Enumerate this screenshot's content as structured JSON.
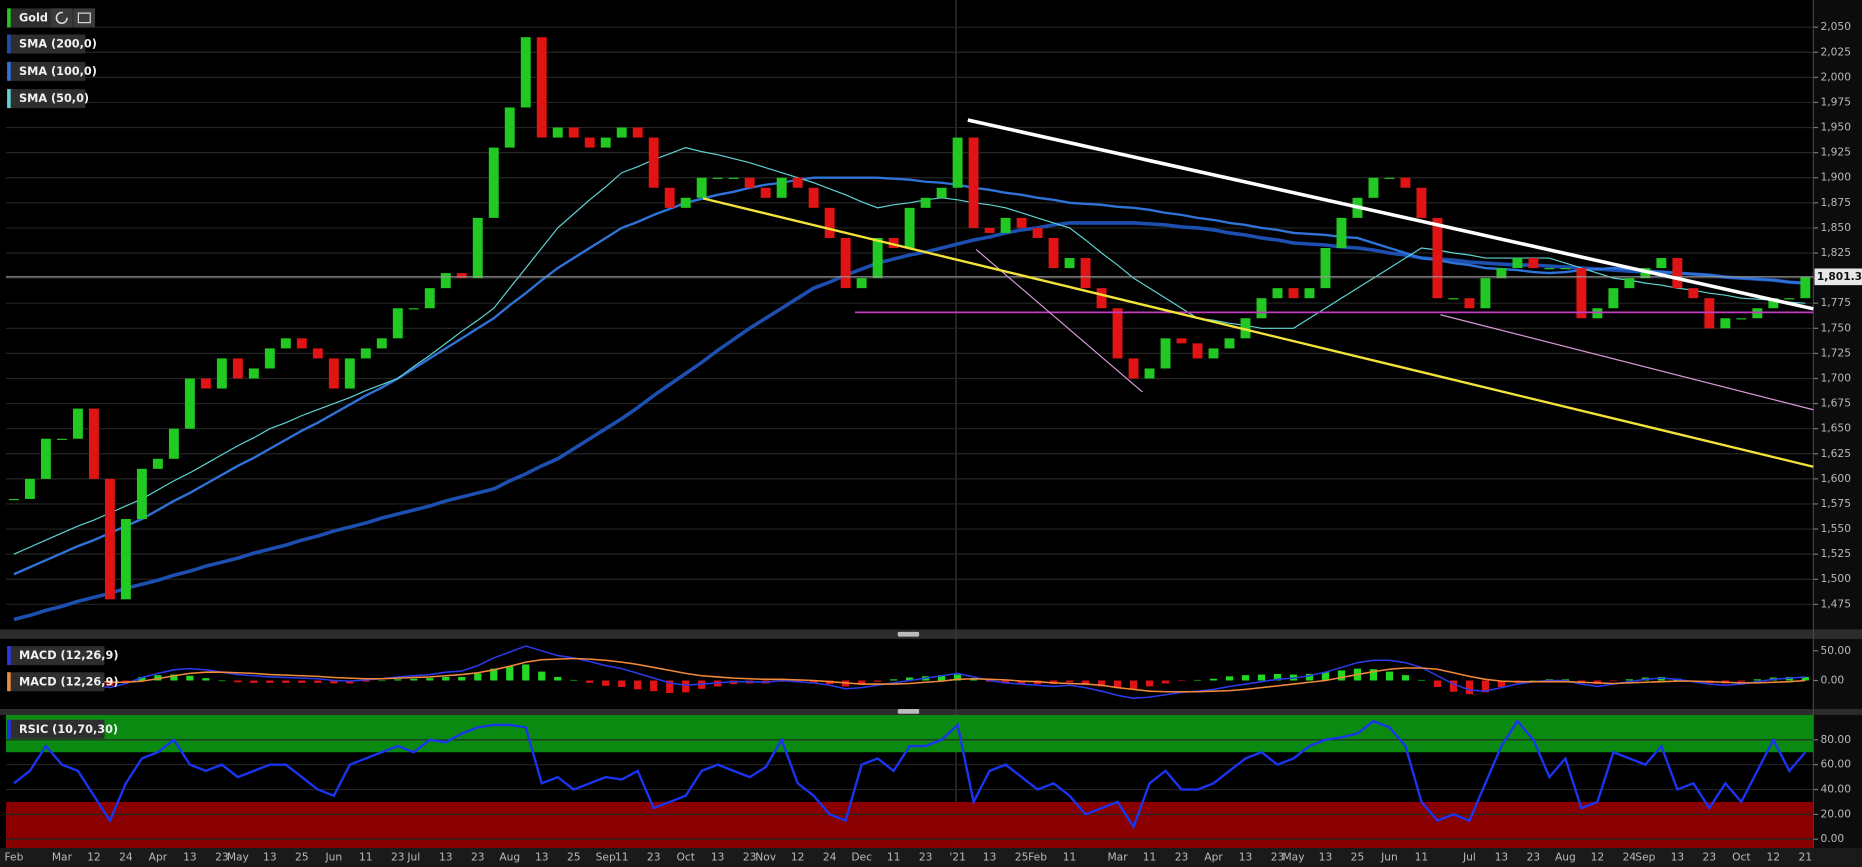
{
  "chart_data": [
    {
      "type": "candlestick",
      "categories": [
        "Feb",
        null,
        null,
        "Mar",
        null,
        "12",
        null,
        "24",
        null,
        "Apr",
        null,
        "13",
        null,
        "23",
        "May",
        null,
        "13",
        null,
        "25",
        null,
        "Jun",
        null,
        "11",
        null,
        "23",
        "Jul",
        null,
        "13",
        null,
        "23",
        null,
        "Aug",
        null,
        "13",
        null,
        "25",
        null,
        "Sep",
        "11",
        null,
        "23",
        null,
        "Oct",
        null,
        "13",
        null,
        "23",
        "Nov",
        null,
        "12",
        null,
        "24",
        null,
        "Dec",
        null,
        "11",
        null,
        "23",
        null,
        "'21",
        null,
        "13",
        null,
        "25",
        "Feb",
        null,
        "11",
        null,
        null,
        "Mar",
        null,
        "11",
        null,
        "23",
        null,
        "Apr",
        null,
        "13",
        null,
        "23",
        "May",
        null,
        "13",
        null,
        "25",
        null,
        "Jun",
        null,
        "11",
        null,
        null,
        "Jul",
        null,
        "13",
        null,
        "23",
        null,
        "Aug",
        null,
        "12",
        null,
        "24",
        "Sep",
        null,
        "13",
        null,
        "23",
        null,
        "Oct",
        null,
        "12",
        null,
        "21"
      ],
      "series": [
        {
          "name": "Gold",
          "up_color": "#22c922",
          "down_color": "#e01414",
          "values": [
            1580,
            1600,
            1640,
            1640,
            1670,
            1600,
            1480,
            1560,
            1610,
            1620,
            1650,
            1700,
            1690,
            1720,
            1700,
            1710,
            1730,
            1740,
            1730,
            1720,
            1690,
            1720,
            1730,
            1740,
            1770,
            1770,
            1790,
            1805,
            1800,
            1860,
            1930,
            1970,
            2040,
            1940,
            1950,
            1940,
            1930,
            1940,
            1950,
            1940,
            1890,
            1870,
            1880,
            1900,
            1900,
            1900,
            1890,
            1880,
            1900,
            1890,
            1870,
            1840,
            1790,
            1800,
            1840,
            1830,
            1870,
            1880,
            1890,
            1940,
            1850,
            1845,
            1860,
            1850,
            1840,
            1810,
            1820,
            1790,
            1770,
            1720,
            1700,
            1710,
            1740,
            1735,
            1720,
            1730,
            1740,
            1760,
            1780,
            1790,
            1780,
            1790,
            1830,
            1860,
            1880,
            1900,
            1900,
            1890,
            1860,
            1780,
            1780,
            1770,
            1800,
            1810,
            1820,
            1810,
            1810,
            1810,
            1760,
            1770,
            1790,
            1800,
            1810,
            1820,
            1790,
            1780,
            1750,
            1760,
            1760,
            1770,
            1780,
            1780,
            1801.3
          ]
        },
        {
          "name": "SMA (200,0)",
          "color": "#1d4fb0",
          "width": 3,
          "values": [
            1460,
            1464,
            1469,
            1473,
            1478,
            1482,
            1486,
            1491,
            1495,
            1499,
            1504,
            1508,
            1513,
            1517,
            1521,
            1526,
            1530,
            1534,
            1539,
            1543,
            1548,
            1552,
            1556,
            1561,
            1565,
            1569,
            1573,
            1578,
            1582,
            1586,
            1590,
            1598,
            1605,
            1613,
            1620,
            1630,
            1640,
            1650,
            1660,
            1671,
            1683,
            1694,
            1705,
            1716,
            1728,
            1739,
            1750,
            1760,
            1770,
            1780,
            1790,
            1796,
            1803,
            1809,
            1815,
            1819,
            1823,
            1826,
            1830,
            1834,
            1838,
            1841,
            1845,
            1848,
            1850,
            1853,
            1855,
            1855,
            1855,
            1855,
            1855,
            1854,
            1853,
            1851,
            1850,
            1848,
            1845,
            1843,
            1840,
            1838,
            1835,
            1834,
            1833,
            1831,
            1830,
            1828,
            1825,
            1823,
            1820,
            1819,
            1818,
            1816,
            1815,
            1814,
            1813,
            1813,
            1812,
            1811,
            1810,
            1809,
            1808,
            1807,
            1806,
            1806,
            1805,
            1804,
            1803,
            1801,
            1800,
            1799,
            1798,
            1796,
            1795
          ]
        },
        {
          "name": "SMA (100,0)",
          "color": "#2f72d8",
          "width": 2,
          "values": [
            1505,
            1512,
            1519,
            1526,
            1533,
            1539,
            1546,
            1553,
            1560,
            1569,
            1578,
            1586,
            1595,
            1604,
            1613,
            1621,
            1630,
            1639,
            1648,
            1656,
            1665,
            1674,
            1683,
            1691,
            1700,
            1710,
            1720,
            1730,
            1740,
            1750,
            1760,
            1773,
            1785,
            1798,
            1810,
            1820,
            1830,
            1840,
            1850,
            1856,
            1863,
            1869,
            1875,
            1879,
            1883,
            1886,
            1890,
            1893,
            1895,
            1898,
            1900,
            1900,
            1900,
            1900,
            1900,
            1899,
            1898,
            1896,
            1895,
            1893,
            1890,
            1888,
            1885,
            1883,
            1880,
            1878,
            1875,
            1874,
            1873,
            1871,
            1870,
            1868,
            1865,
            1863,
            1860,
            1858,
            1855,
            1853,
            1850,
            1848,
            1845,
            1844,
            1843,
            1841,
            1840,
            1835,
            1830,
            1825,
            1820,
            1818,
            1815,
            1813,
            1810,
            1809,
            1808,
            1806,
            1805,
            1806,
            1808,
            1809,
            1810,
            1809,
            1808,
            1806,
            1805,
            1804,
            1803,
            1801,
            1800,
            1799,
            1798,
            1796,
            1795
          ]
        },
        {
          "name": "SMA (50,0)",
          "color": "#5fd3d3",
          "width": 1,
          "values": [
            1525,
            1532,
            1539,
            1546,
            1553,
            1559,
            1566,
            1573,
            1580,
            1589,
            1598,
            1606,
            1615,
            1624,
            1633,
            1641,
            1650,
            1656,
            1663,
            1669,
            1675,
            1681,
            1688,
            1694,
            1700,
            1712,
            1723,
            1735,
            1747,
            1758,
            1770,
            1790,
            1810,
            1830,
            1850,
            1864,
            1878,
            1891,
            1905,
            1911,
            1918,
            1924,
            1930,
            1926,
            1923,
            1919,
            1915,
            1910,
            1905,
            1900,
            1895,
            1889,
            1883,
            1876,
            1870,
            1873,
            1875,
            1878,
            1880,
            1878,
            1875,
            1873,
            1870,
            1865,
            1860,
            1855,
            1850,
            1838,
            1825,
            1813,
            1800,
            1790,
            1780,
            1770,
            1760,
            1758,
            1755,
            1753,
            1750,
            1750,
            1750,
            1760,
            1770,
            1780,
            1790,
            1800,
            1810,
            1820,
            1830,
            1828,
            1825,
            1823,
            1820,
            1820,
            1820,
            1820,
            1820,
            1815,
            1810,
            1805,
            1800,
            1798,
            1795,
            1793,
            1790,
            1788,
            1785,
            1783,
            1780,
            1779,
            1778,
            1776,
            1775
          ]
        }
      ],
      "last_price": {
        "value": 1801.3,
        "label": "1,801.30"
      },
      "ylim": [
        1450,
        2077
      ],
      "yticks": [
        {
          "value": 1475,
          "label": "1,475"
        },
        {
          "value": 1500,
          "label": "1,500"
        },
        {
          "value": 1525,
          "label": "1,525"
        },
        {
          "value": 1550,
          "label": "1,550"
        },
        {
          "value": 1575,
          "label": "1,575"
        },
        {
          "value": 1600,
          "label": "1,600"
        },
        {
          "value": 1625,
          "label": "1,625"
        },
        {
          "value": 1650,
          "label": "1,650"
        },
        {
          "value": 1675,
          "label": "1,675"
        },
        {
          "value": 1700,
          "label": "1,700"
        },
        {
          "value": 1725,
          "label": "1,725"
        },
        {
          "value": 1750,
          "label": "1,750"
        },
        {
          "value": 1775,
          "label": "1,775"
        },
        {
          "value": 1800,
          "label": "1,800"
        },
        {
          "value": 1825,
          "label": "1,825"
        },
        {
          "value": 1850,
          "label": "1,850"
        },
        {
          "value": 1875,
          "label": "1,875"
        },
        {
          "value": 1900,
          "label": "1,900"
        },
        {
          "value": 1925,
          "label": "1,925"
        },
        {
          "value": 1950,
          "label": "1,950"
        },
        {
          "value": 1975,
          "label": "1,975"
        },
        {
          "value": 2000,
          "label": "2,000"
        },
        {
          "value": 2025,
          "label": "2,025"
        },
        {
          "value": 2050,
          "label": "2,050"
        }
      ],
      "grid": true
    },
    {
      "type": "macd",
      "series": [
        {
          "name": "MACD (12,26,9)",
          "color": "#2a3ae8",
          "values": [
            2,
            3,
            4,
            3,
            -2,
            -8,
            -12,
            -5,
            5,
            12,
            18,
            20,
            18,
            14,
            10,
            8,
            6,
            5,
            4,
            3,
            0,
            -1,
            1,
            3,
            6,
            8,
            10,
            14,
            16,
            25,
            38,
            48,
            58,
            50,
            42,
            38,
            32,
            25,
            20,
            12,
            4,
            -4,
            -8,
            -6,
            -4,
            -2,
            -2,
            -3,
            0,
            -2,
            -4,
            -8,
            -14,
            -12,
            -8,
            -4,
            0,
            4,
            8,
            12,
            6,
            0,
            -4,
            -6,
            -8,
            -10,
            -8,
            -12,
            -18,
            -25,
            -30,
            -28,
            -24,
            -20,
            -18,
            -15,
            -10,
            -6,
            -2,
            2,
            4,
            8,
            14,
            22,
            30,
            34,
            34,
            30,
            22,
            8,
            -6,
            -16,
            -18,
            -12,
            -6,
            -2,
            0,
            0,
            -6,
            -10,
            -6,
            -2,
            2,
            4,
            2,
            -2,
            -6,
            -8,
            -6,
            -2,
            2,
            4,
            6
          ]
        },
        {
          "name": "MACD (12,26,9)",
          "color": "#f08a3a",
          "values": [
            1,
            2,
            3,
            3,
            2,
            0,
            -3,
            -3,
            -1,
            3,
            8,
            12,
            14,
            14,
            13,
            12,
            10,
            9,
            8,
            7,
            5,
            4,
            3,
            3,
            4,
            5,
            6,
            8,
            10,
            13,
            18,
            24,
            31,
            35,
            36,
            37,
            36,
            34,
            31,
            27,
            22,
            17,
            12,
            8,
            6,
            4,
            3,
            2,
            2,
            1,
            0,
            -2,
            -4,
            -6,
            -6,
            -6,
            -5,
            -3,
            -1,
            2,
            3,
            2,
            1,
            -1,
            -2,
            -4,
            -5,
            -6,
            -8,
            -12,
            -15,
            -18,
            -19,
            -19,
            -19,
            -18,
            -17,
            -15,
            -12,
            -9,
            -6,
            -3,
            0,
            5,
            10,
            15,
            19,
            21,
            21,
            19,
            13,
            7,
            2,
            -1,
            -2,
            -2,
            -2,
            -2,
            -3,
            -4,
            -5,
            -4,
            -3,
            -2,
            -1,
            -1,
            -2,
            -3,
            -4,
            -4,
            -3,
            -2,
            0
          ]
        }
      ],
      "up_color": "#22d822",
      "down_color": "#e01414",
      "ylim": [
        -48,
        70
      ],
      "yticks": [
        {
          "value": 50,
          "label": "50.00"
        },
        {
          "value": 0,
          "label": "0.00"
        }
      ]
    },
    {
      "type": "rsi",
      "series": [
        {
          "name": "RSIC (10,70,30)",
          "color": "#1a34f0",
          "values": [
            45,
            55,
            75,
            60,
            55,
            35,
            15,
            45,
            65,
            70,
            80,
            60,
            55,
            60,
            50,
            55,
            60,
            60,
            50,
            40,
            35,
            60,
            65,
            70,
            75,
            70,
            80,
            78,
            85,
            90,
            92,
            92,
            90,
            45,
            50,
            40,
            45,
            50,
            48,
            55,
            25,
            30,
            35,
            55,
            60,
            55,
            50,
            58,
            80,
            45,
            35,
            20,
            15,
            60,
            65,
            55,
            75,
            75,
            80,
            92,
            30,
            55,
            60,
            50,
            40,
            45,
            35,
            20,
            25,
            30,
            10,
            45,
            55,
            40,
            40,
            45,
            55,
            65,
            70,
            60,
            65,
            75,
            80,
            82,
            85,
            95,
            90,
            75,
            30,
            15,
            20,
            15,
            45,
            75,
            95,
            80,
            50,
            65,
            25,
            30,
            70,
            65,
            60,
            75,
            40,
            45,
            25,
            45,
            30,
            55,
            80,
            55,
            70
          ]
        }
      ],
      "overbought": 70,
      "oversold": 30,
      "overbought_color": "#0b8a12",
      "oversold_color": "#8a0000",
      "ylim": [
        -7,
        100
      ],
      "yticks": [
        {
          "value": 80,
          "label": "80.00"
        },
        {
          "value": 60,
          "label": "60.00"
        },
        {
          "value": 40,
          "label": "40.00"
        },
        {
          "value": 20,
          "label": "20.00"
        },
        {
          "value": 0,
          "label": "0.00"
        }
      ]
    }
  ]
}
